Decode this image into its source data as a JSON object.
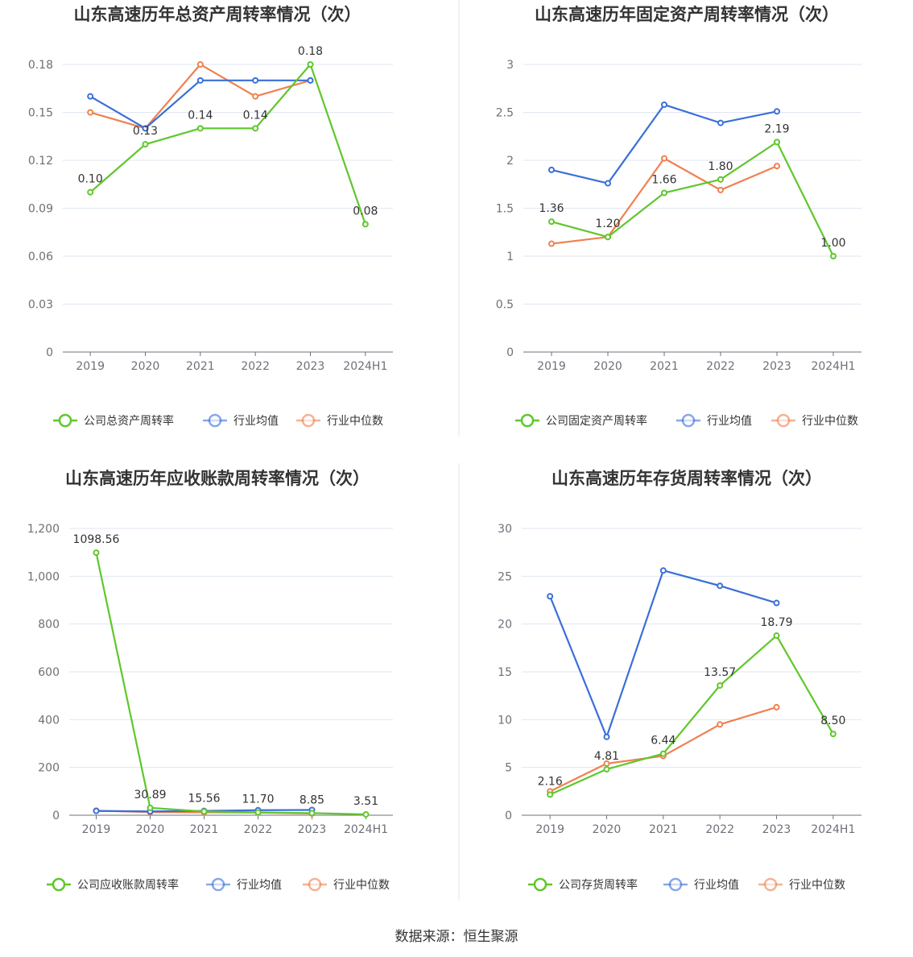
{
  "colors": {
    "company": "#5fc72b",
    "average": "#3a6fd8",
    "median": "#f08050"
  },
  "source": "数据来源：恒生聚源",
  "chart_data": [
    {
      "type": "line",
      "title": "山东高速历年总资产周转率情况（次）",
      "categories": [
        "2019",
        "2020",
        "2021",
        "2022",
        "2023",
        "2024H1"
      ],
      "ylim": [
        0,
        0.18
      ],
      "yticks": [
        "0",
        "0.03",
        "0.06",
        "0.09",
        "0.12",
        "0.15",
        "0.18"
      ],
      "grid": true,
      "legend_position": "bottom",
      "series": [
        {
          "name": "公司总资产周转率",
          "role": "company",
          "values": [
            0.1,
            0.13,
            0.14,
            0.14,
            0.18,
            0.08
          ],
          "labels": [
            "0.10",
            "0.13",
            "0.14",
            "0.14",
            "0.18",
            "0.08"
          ]
        },
        {
          "name": "行业均值",
          "role": "average",
          "values": [
            0.16,
            0.14,
            0.17,
            0.17,
            0.17,
            null
          ]
        },
        {
          "name": "行业中位数",
          "role": "median",
          "values": [
            0.15,
            0.14,
            0.18,
            0.16,
            0.17,
            null
          ]
        }
      ]
    },
    {
      "type": "line",
      "title": "山东高速历年固定资产周转率情况（次）",
      "categories": [
        "2019",
        "2020",
        "2021",
        "2022",
        "2023",
        "2024H1"
      ],
      "ylim": [
        0,
        3
      ],
      "yticks": [
        "0",
        "0.5",
        "1",
        "1.5",
        "2",
        "2.5",
        "3"
      ],
      "grid": true,
      "legend_position": "bottom",
      "series": [
        {
          "name": "公司固定资产周转率",
          "role": "company",
          "values": [
            1.36,
            1.2,
            1.66,
            1.8,
            2.19,
            1.0
          ],
          "labels": [
            "1.36",
            "1.20",
            "1.66",
            "1.80",
            "2.19",
            "1.00"
          ]
        },
        {
          "name": "行业均值",
          "role": "average",
          "values": [
            1.9,
            1.76,
            2.58,
            2.39,
            2.51,
            null
          ]
        },
        {
          "name": "行业中位数",
          "role": "median",
          "values": [
            1.13,
            1.2,
            2.02,
            1.69,
            1.94,
            null
          ]
        }
      ]
    },
    {
      "type": "line",
      "title": "山东高速历年应收账款周转率情况（次）",
      "categories": [
        "2019",
        "2020",
        "2021",
        "2022",
        "2023",
        "2024H1"
      ],
      "ylim": [
        0,
        1200
      ],
      "yticks": [
        "0",
        "200",
        "400",
        "600",
        "800",
        "1,000",
        "1,200"
      ],
      "grid": true,
      "legend_position": "bottom",
      "series": [
        {
          "name": "公司应收账款周转率",
          "role": "company",
          "values": [
            1098.56,
            30.89,
            15.56,
            11.7,
            8.85,
            3.51
          ],
          "labels": [
            "1098.56",
            "30.89",
            "15.56",
            "11.70",
            "8.85",
            "3.51"
          ]
        },
        {
          "name": "行业均值",
          "role": "average",
          "values": [
            18,
            16,
            18,
            21,
            22,
            null
          ]
        },
        {
          "name": "行业中位数",
          "role": "median",
          "values": [
            19,
            13,
            12,
            11,
            7,
            null
          ]
        }
      ]
    },
    {
      "type": "line",
      "title": "山东高速历年存货周转率情况（次）",
      "categories": [
        "2019",
        "2020",
        "2021",
        "2022",
        "2023",
        "2024H1"
      ],
      "ylim": [
        0,
        30
      ],
      "yticks": [
        "0",
        "5",
        "10",
        "15",
        "20",
        "25",
        "30"
      ],
      "grid": true,
      "legend_position": "bottom",
      "series": [
        {
          "name": "公司存货周转率",
          "role": "company",
          "values": [
            2.16,
            4.81,
            6.44,
            13.57,
            18.79,
            8.5
          ],
          "labels": [
            "2.16",
            "4.81",
            "6.44",
            "13.57",
            "18.79",
            "8.50"
          ]
        },
        {
          "name": "行业均值",
          "role": "average",
          "values": [
            22.9,
            8.2,
            25.6,
            24.0,
            22.2,
            null
          ]
        },
        {
          "name": "行业中位数",
          "role": "median",
          "values": [
            2.5,
            5.4,
            6.2,
            9.5,
            11.3,
            null
          ]
        }
      ]
    }
  ]
}
